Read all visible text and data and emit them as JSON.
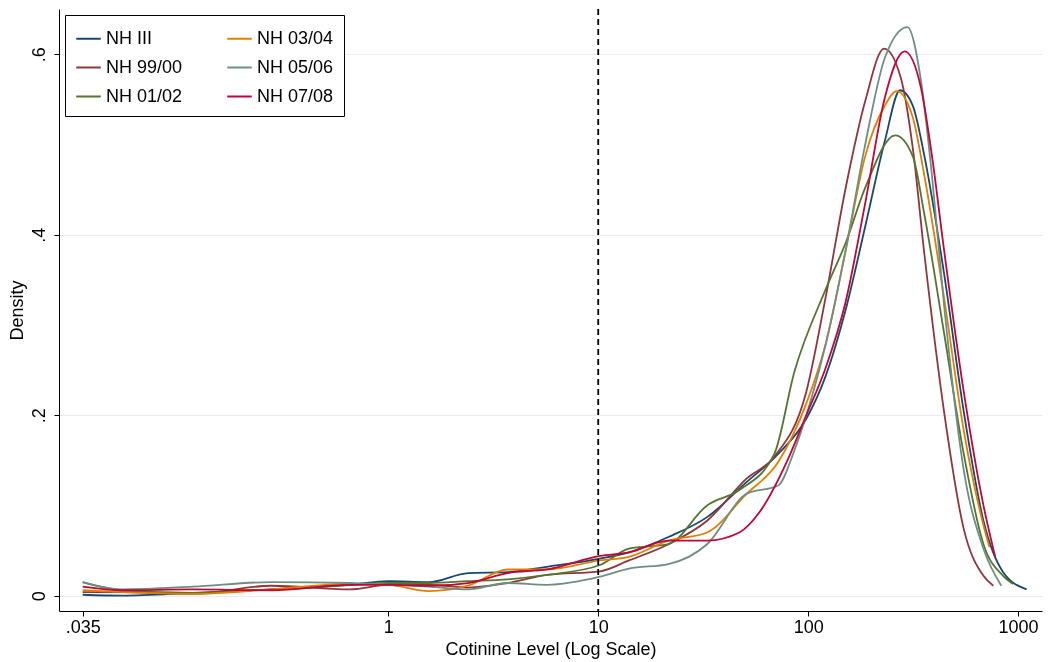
{
  "chart_data": {
    "type": "line",
    "xlabel": "Cotinine Level (Log Scale)",
    "ylabel": "Density",
    "log": "x",
    "xlim": [
      0.027,
      1300
    ],
    "ylim": [
      -0.017,
      0.65
    ],
    "xticks": [
      {
        "value": 0.035,
        "label": ".035"
      },
      1,
      10,
      100,
      1000
    ],
    "yticks": [
      0,
      {
        "value": 0.2,
        "label": ".2"
      },
      {
        "value": 0.4,
        "label": ".4"
      },
      {
        "value": 0.6,
        "label": ".6"
      }
    ],
    "grid": "y",
    "legend": "top left",
    "line_style": "solid",
    "ref_lines": [
      {
        "axis": "x",
        "value": 10,
        "line_style": "dashed",
        "color": "#000000"
      }
    ],
    "series": [
      {
        "name": "NH III",
        "color": "#1a476f",
        "x": [
          0.035,
          0.054,
          0.117,
          0.277,
          0.658,
          1,
          1.56,
          2.4,
          3.7,
          5.7,
          10.2,
          14,
          21.6,
          33,
          51,
          72,
          98,
          121,
          151,
          187,
          232,
          274,
          315,
          358,
          444,
          551,
          684,
          849,
          1099
        ],
        "values": [
          0.001,
          0.0,
          0.003,
          0.007,
          0.012,
          0.016,
          0.015,
          0.025,
          0.026,
          0.032,
          0.041,
          0.048,
          0.065,
          0.087,
          0.126,
          0.157,
          0.196,
          0.243,
          0.317,
          0.409,
          0.504,
          0.56,
          0.543,
          0.487,
          0.357,
          0.204,
          0.083,
          0.026,
          0.007
        ]
      },
      {
        "name": "NH 99/00",
        "color": "#90353b",
        "x": [
          0.035,
          0.054,
          0.117,
          0.277,
          0.658,
          1,
          1.56,
          2.4,
          3.7,
          5.7,
          10.2,
          14,
          21.6,
          33,
          51,
          69,
          98,
          121,
          151,
          187,
          230,
          276,
          315,
          358,
          444,
          551,
          684,
          762
        ],
        "values": [
          0.004,
          0.004,
          0.002,
          0.011,
          0.007,
          0.012,
          0.012,
          0.009,
          0.014,
          0.023,
          0.027,
          0.039,
          0.057,
          0.083,
          0.13,
          0.154,
          0.226,
          0.33,
          0.452,
          0.548,
          0.606,
          0.574,
          0.496,
          0.378,
          0.204,
          0.074,
          0.022,
          0.011
        ]
      },
      {
        "name": "NH 01/02",
        "color": "#55752f",
        "x": [
          0.035,
          0.054,
          0.117,
          0.277,
          0.658,
          1,
          1.56,
          2.4,
          3.7,
          5.7,
          10.2,
          14,
          21.6,
          33,
          47,
          69,
          86,
          121,
          151,
          187,
          260,
          315,
          358,
          444,
          551,
          684,
          849,
          946
        ],
        "values": [
          0.015,
          0.006,
          0.003,
          0.007,
          0.012,
          0.014,
          0.014,
          0.016,
          0.018,
          0.023,
          0.034,
          0.052,
          0.057,
          0.1,
          0.117,
          0.157,
          0.248,
          0.339,
          0.391,
          0.452,
          0.51,
          0.487,
          0.422,
          0.291,
          0.157,
          0.057,
          0.022,
          0.013
        ]
      },
      {
        "name": "NH 03/04",
        "color": "#e37e00",
        "x": [
          0.035,
          0.054,
          0.117,
          0.277,
          0.658,
          1,
          1.56,
          2.4,
          3.7,
          5.7,
          10.2,
          14,
          21.6,
          33,
          51,
          72,
          98,
          121,
          151,
          187,
          232,
          264,
          315,
          358,
          444,
          551,
          684,
          730
        ],
        "values": [
          0.006,
          0.004,
          0.002,
          0.007,
          0.013,
          0.012,
          0.005,
          0.011,
          0.029,
          0.029,
          0.039,
          0.043,
          0.061,
          0.07,
          0.113,
          0.148,
          0.213,
          0.278,
          0.383,
          0.487,
          0.543,
          0.559,
          0.53,
          0.465,
          0.33,
          0.183,
          0.078,
          0.054
        ]
      },
      {
        "name": "NH 05/06",
        "color": "#6e8e84",
        "x": [
          0.035,
          0.054,
          0.117,
          0.277,
          0.658,
          1,
          1.56,
          2.4,
          3.7,
          5.7,
          10.2,
          14,
          21.6,
          33,
          51,
          72,
          86,
          98,
          121,
          151,
          187,
          232,
          297,
          343,
          389,
          444,
          551,
          684,
          832
        ],
        "values": [
          0.015,
          0.007,
          0.01,
          0.015,
          0.014,
          0.012,
          0.01,
          0.007,
          0.014,
          0.012,
          0.021,
          0.03,
          0.035,
          0.057,
          0.113,
          0.122,
          0.161,
          0.2,
          0.278,
          0.383,
          0.5,
          0.596,
          0.63,
          0.574,
          0.465,
          0.322,
          0.139,
          0.052,
          0.011
        ]
      },
      {
        "name": "NH 07/08",
        "color": "#c10534",
        "x": [
          0.035,
          0.054,
          0.117,
          0.277,
          0.658,
          1,
          1.56,
          2.4,
          3.7,
          5.7,
          10.2,
          14,
          21.6,
          33,
          47,
          58,
          79,
          98,
          121,
          151,
          187,
          232,
          288,
          343,
          389,
          444,
          551,
          684,
          778
        ],
        "values": [
          0.01,
          0.006,
          0.007,
          0.006,
          0.012,
          0.012,
          0.011,
          0.014,
          0.025,
          0.029,
          0.044,
          0.048,
          0.061,
          0.061,
          0.07,
          0.091,
          0.148,
          0.2,
          0.252,
          0.326,
          0.435,
          0.552,
          0.603,
          0.565,
          0.487,
          0.383,
          0.226,
          0.1,
          0.043
        ]
      }
    ]
  }
}
